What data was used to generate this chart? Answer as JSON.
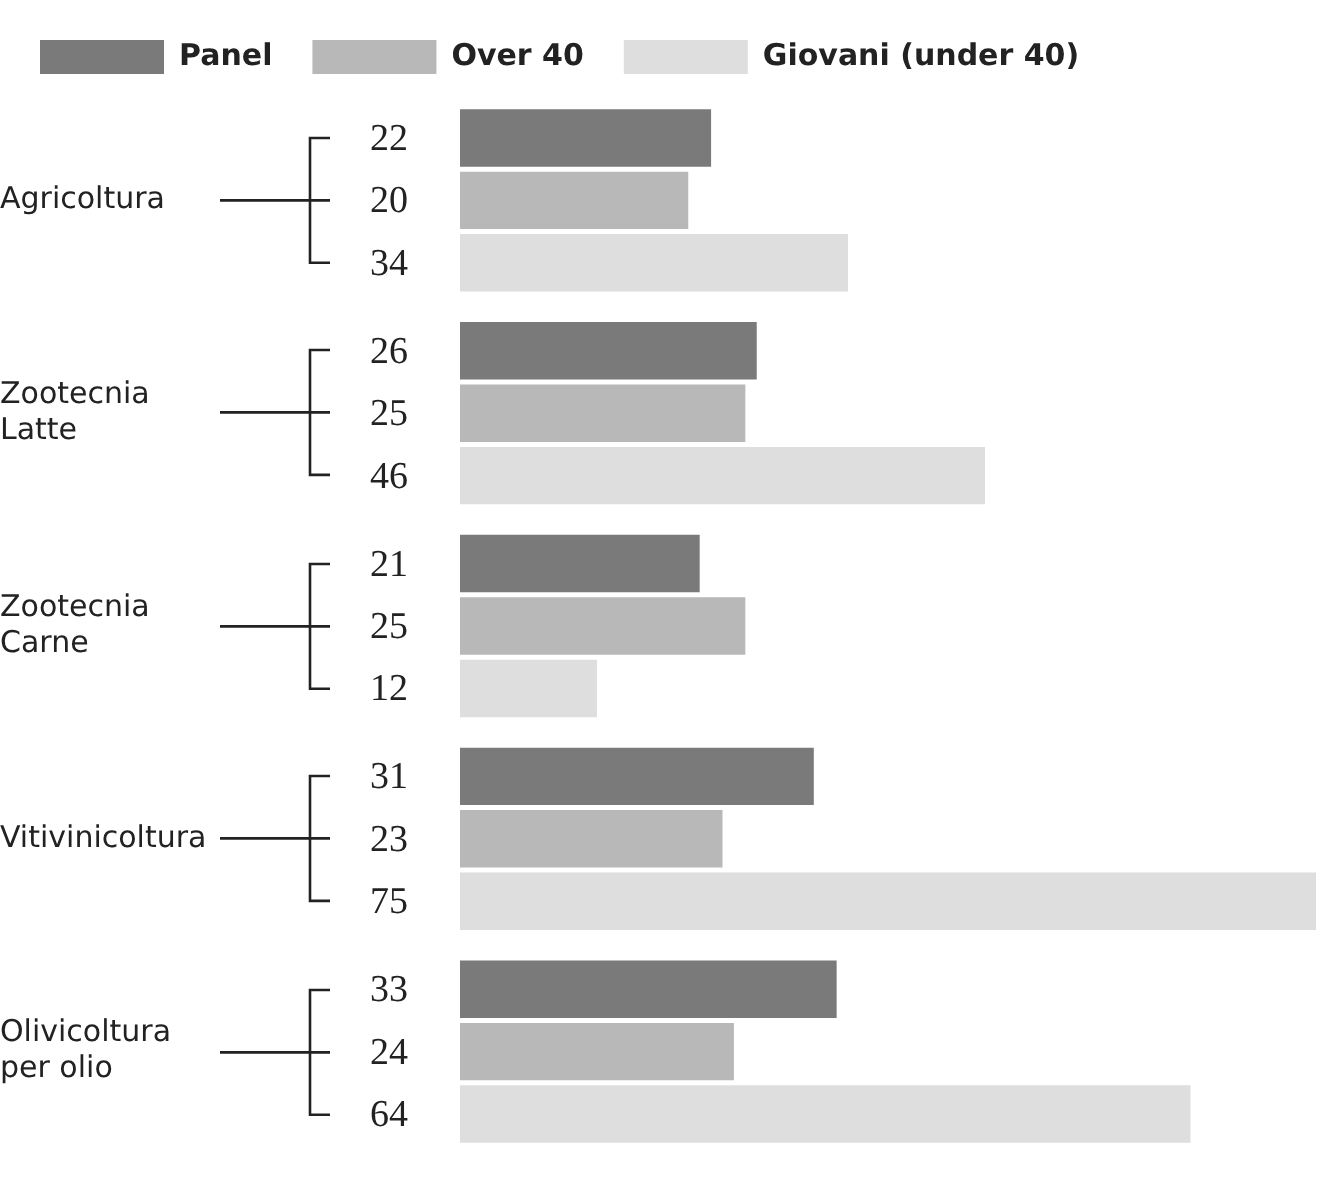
{
  "chart_data": {
    "type": "bar",
    "orientation": "horizontal",
    "categories": [
      "Agricoltura",
      "Zootecnia Latte",
      "Zootecnia Carne",
      "Vitivinicoltura",
      "Olivicoltura per olio"
    ],
    "series": [
      {
        "name": "Panel",
        "color": "#7a7a7a",
        "values": [
          22,
          26,
          21,
          31,
          33
        ]
      },
      {
        "name": "Over 40",
        "color": "#b8b8b8",
        "values": [
          20,
          25,
          25,
          23,
          24
        ]
      },
      {
        "name": "Giovani (under 40)",
        "color": "#dedede",
        "values": [
          34,
          46,
          12,
          75,
          64
        ]
      }
    ],
    "xlim": [
      0,
      75
    ],
    "data_labels": true,
    "legend": "top left",
    "tick_labels": "y"
  }
}
